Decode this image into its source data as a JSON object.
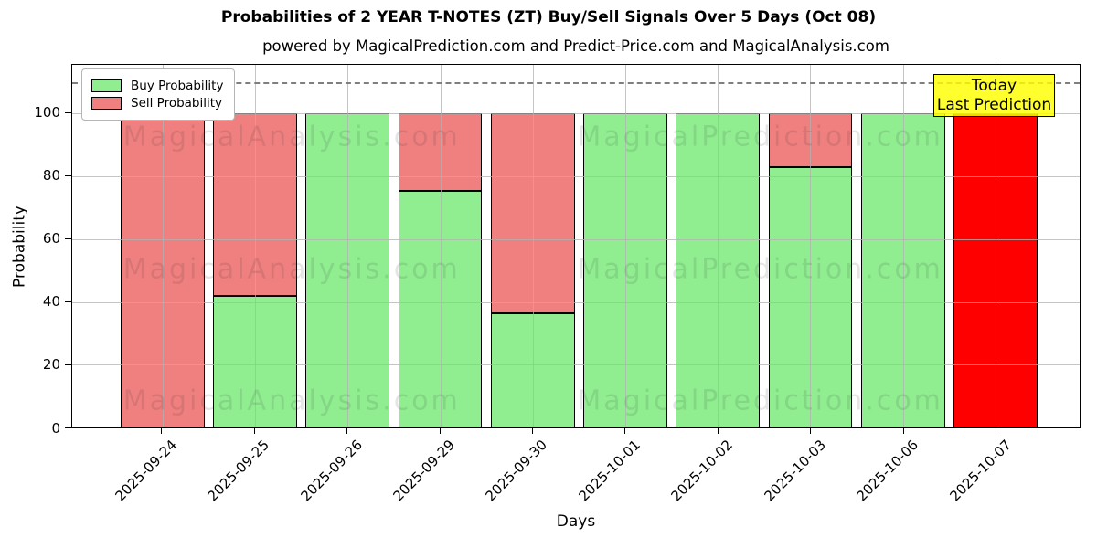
{
  "title": "Probabilities of 2 YEAR T-NOTES (ZT) Buy/Sell Signals Over 5 Days (Oct 08)",
  "subtitle": "powered by MagicalPrediction.com and Predict-Price.com and MagicalAnalysis.com",
  "annotation": {
    "line1": "Today",
    "line2": "Last Prediction",
    "bg_color": "#ffff00"
  },
  "watermarks": [
    "MagicalAnalysis.com",
    "MagicalPrediction.com"
  ],
  "colors": {
    "buy": "#90ee90",
    "sell": "#f08080",
    "today_bar": "#ff0000",
    "bar_edge": "#000000",
    "grid": "#b2b2b2",
    "dashed_line": "#7f7f7f",
    "annotation_bg": "#ffff00"
  },
  "chart_data": {
    "type": "bar",
    "stacked": true,
    "title": "Probabilities of 2 YEAR T-NOTES (ZT) Buy/Sell Signals Over 5 Days (Oct 08)",
    "subtitle": "powered by MagicalPrediction.com and Predict-Price.com and MagicalAnalysis.com",
    "xlabel": "Days",
    "ylabel": "Probability",
    "categories": [
      "2025-09-24",
      "2025-09-25",
      "2025-09-26",
      "2025-09-29",
      "2025-09-30",
      "2025-10-01",
      "2025-10-02",
      "2025-10-03",
      "2025-10-06",
      "2025-10-07"
    ],
    "series": [
      {
        "name": "Buy Probability",
        "color": "#90ee90",
        "values": [
          0,
          42,
          100,
          75.5,
          36.5,
          100,
          100,
          83,
          100,
          0
        ]
      },
      {
        "name": "Sell Probability",
        "color": "#f08080",
        "values": [
          100,
          58,
          0,
          24.5,
          63.5,
          0,
          0,
          17,
          0,
          100
        ]
      }
    ],
    "today_bar": {
      "index": 9,
      "category": "2025-10-07",
      "color": "#ff0000",
      "value": 100
    },
    "yticks": [
      0,
      20,
      40,
      60,
      80,
      100
    ],
    "ylim": [
      0,
      115.5
    ],
    "dashed_line_y": 110,
    "grid": true,
    "legend_position": "upper-left"
  }
}
